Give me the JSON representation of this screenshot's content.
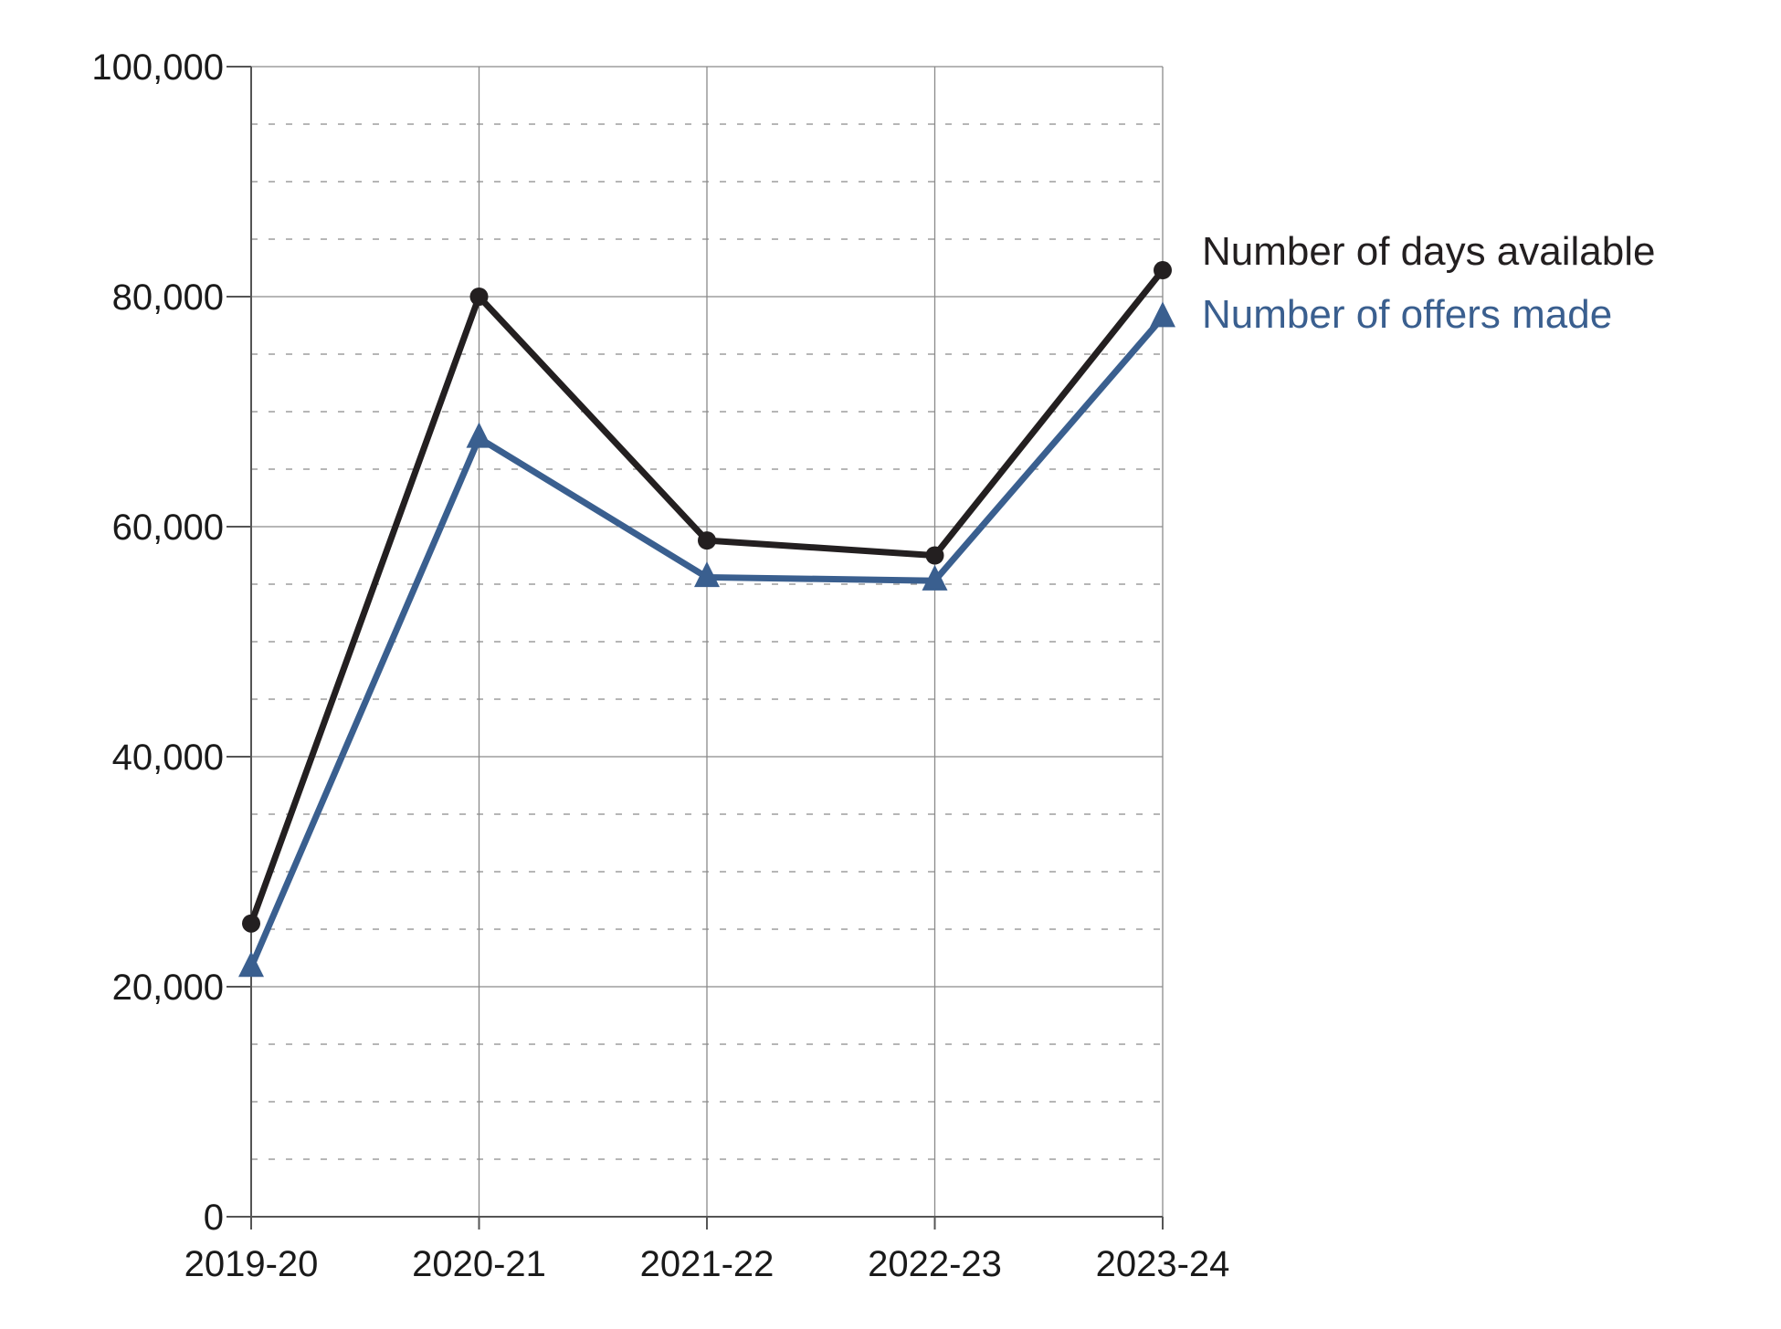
{
  "chart_data": {
    "type": "line",
    "title": "",
    "xlabel": "",
    "ylabel": "",
    "categories": [
      "2019-20",
      "2020-21",
      "2021-22",
      "2022-23",
      "2023-24"
    ],
    "ylim": [
      0,
      100000
    ],
    "y_ticks": [
      0,
      20000,
      40000,
      60000,
      80000,
      100000
    ],
    "y_tick_labels": [
      "0",
      "20,000",
      "40,000",
      "60,000",
      "80,000",
      "100,000"
    ],
    "y_minor_step": 5000,
    "grid": true,
    "legend_placement": "right, next to line ends",
    "series": [
      {
        "name": "Number of days available",
        "values": [
          25500,
          80000,
          58800,
          57500,
          82300
        ],
        "color": "#231f20",
        "marker": "circle"
      },
      {
        "name": "Number of offers made",
        "values": [
          21700,
          67700,
          55600,
          55300,
          78200
        ],
        "color": "#3a5f8f",
        "marker": "triangle"
      }
    ]
  }
}
